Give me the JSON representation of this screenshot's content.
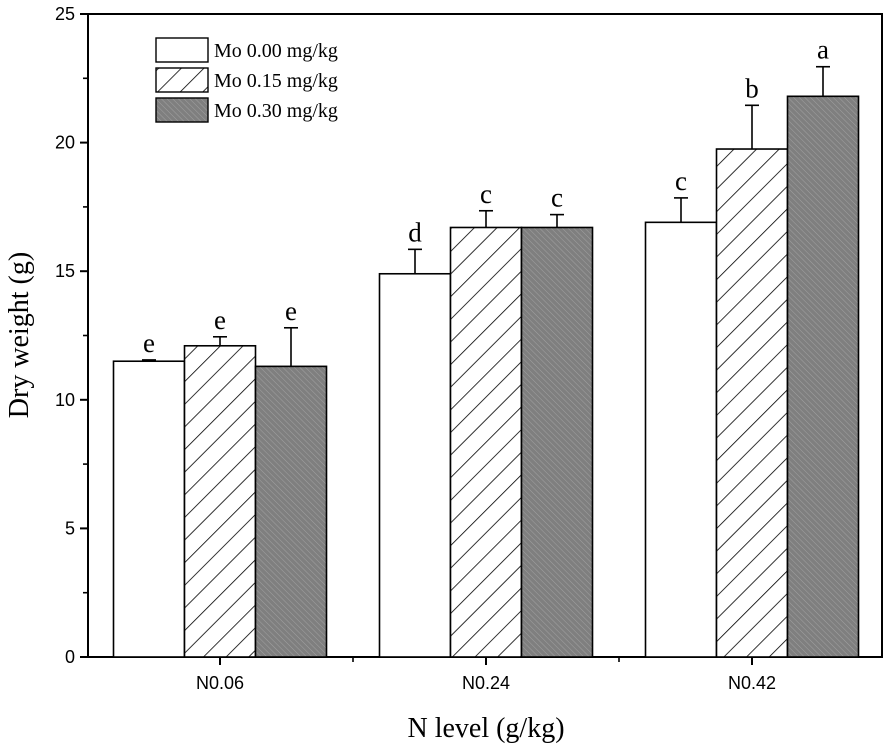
{
  "chart_data": {
    "type": "bar",
    "title": "",
    "xlabel": "N level (g/kg)",
    "ylabel": "Dry weight (g)",
    "ylim": [
      0,
      25
    ],
    "yticks": [
      "0",
      "5",
      "10",
      "15",
      "20",
      "25"
    ],
    "categories": [
      "N0.06",
      "N0.24",
      "N0.42"
    ],
    "grid": false,
    "legend_position": "top-left",
    "series": [
      {
        "name": "Mo 0.00 mg/kg",
        "pattern": "solid-white",
        "values": [
          11.5,
          14.9,
          16.9
        ],
        "errors": [
          0.05,
          0.95,
          0.95
        ],
        "labels": [
          "e",
          "d",
          "c"
        ]
      },
      {
        "name": "Mo 0.15 mg/kg",
        "pattern": "diagonal-hatch",
        "values": [
          12.1,
          16.7,
          19.75
        ],
        "errors": [
          0.35,
          0.65,
          1.7
        ],
        "labels": [
          "e",
          "c",
          "b"
        ]
      },
      {
        "name": "Mo 0.30 mg/kg",
        "pattern": "dense-gray",
        "values": [
          11.3,
          16.7,
          21.8
        ],
        "errors": [
          1.5,
          0.5,
          1.15
        ],
        "labels": [
          "e",
          "c",
          "a"
        ]
      }
    ]
  },
  "colors": {
    "axis": "#000000",
    "white_fill": "#ffffff",
    "gray_fill": "#7f7f7f",
    "gray_line": "#9f9f9f",
    "hatch_line": "#000000"
  }
}
